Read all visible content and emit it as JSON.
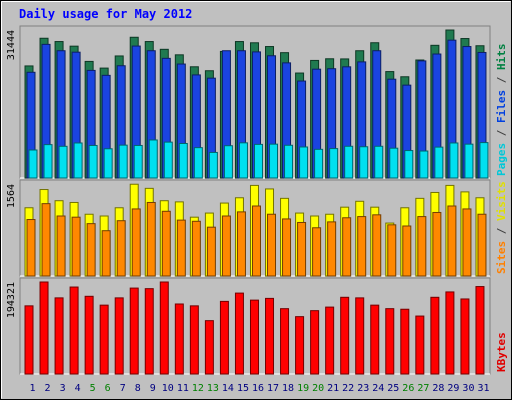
{
  "chart_data": {
    "type": "bar",
    "title": "Daily usage for May 2012",
    "categories": [
      "1",
      "2",
      "3",
      "4",
      "5",
      "6",
      "7",
      "8",
      "9",
      "10",
      "11",
      "12",
      "13",
      "14",
      "15",
      "16",
      "17",
      "18",
      "19",
      "20",
      "21",
      "22",
      "23",
      "24",
      "25",
      "26",
      "27",
      "28",
      "29",
      "30",
      "31"
    ],
    "weekend_days": [
      "5",
      "6",
      "12",
      "13",
      "19",
      "20",
      "26",
      "27"
    ],
    "panels": [
      {
        "id": "hits-files-pages",
        "max_label": "31444",
        "ymax": 31444,
        "right_labels": [
          {
            "text": "Pages",
            "color": "#00c8d8"
          },
          {
            "text": " / ",
            "color": "#404040"
          },
          {
            "text": "Files",
            "color": "#0040e0"
          },
          {
            "text": " / ",
            "color": "#404040"
          },
          {
            "text": "Hits",
            "color": "#008040"
          }
        ],
        "series": [
          {
            "name": "Hits",
            "color": "#207a50",
            "values": [
              23810,
              29690,
              28990,
              28010,
              24770,
              23350,
              25930,
              29900,
              28990,
              27340,
              26170,
              23630,
              22790,
              26890,
              28990,
              28730,
              27930,
              26630,
              22300,
              24980,
              25330,
              25300,
              27040,
              28740,
              22610,
              21510,
              25070,
              28190,
              31440,
              29630,
              28100
            ]
          },
          {
            "name": "Files",
            "color": "#1a44e0",
            "values": [
              22460,
              28390,
              27040,
              26730,
              22860,
              21810,
              23850,
              28030,
              27040,
              25420,
              24210,
              21900,
              21210,
              27040,
              27040,
              26790,
              25970,
              24460,
              20600,
              23120,
              23220,
              23620,
              24670,
              27040,
              20990,
              19730,
              24880,
              26340,
              29280,
              27930,
              26670
            ]
          },
          {
            "name": "Pages",
            "color": "#00e0f0",
            "values": [
              5950,
              7090,
              6730,
              7440,
              6910,
              6210,
              6980,
              6910,
              8080,
              7620,
              7330,
              6450,
              5430,
              6860,
              7470,
              7140,
              7190,
              6950,
              6590,
              6090,
              6250,
              6740,
              6640,
              6740,
              6330,
              5830,
              5730,
              6560,
              7440,
              7190,
              7520
            ]
          }
        ]
      },
      {
        "id": "visits-sites",
        "max_label": "1564",
        "ymax": 1564,
        "right_labels": [
          {
            "text": "Sites",
            "color": "#ff8000"
          },
          {
            "text": " / ",
            "color": "#404040"
          },
          {
            "text": "Visits",
            "color": "#e0e000"
          }
        ],
        "series": [
          {
            "name": "Visits",
            "color": "#ffff00",
            "values": [
              1160,
              1470,
              1280,
              1250,
              1050,
              1020,
              1160,
              1560,
              1490,
              1280,
              1260,
              1000,
              1070,
              1240,
              1330,
              1540,
              1480,
              1320,
              1070,
              1020,
              1050,
              1170,
              1270,
              1170,
              900,
              1160,
              1320,
              1420,
              1540,
              1430,
              1330
            ]
          },
          {
            "name": "Sites",
            "color": "#ff8800",
            "values": [
              960,
              1230,
              1020,
              1000,
              890,
              770,
              940,
              1140,
              1250,
              1100,
              950,
              930,
              830,
              1020,
              1090,
              1190,
              1050,
              970,
              910,
              820,
              920,
              990,
              1010,
              1040,
              870,
              850,
              1010,
              1080,
              1190,
              1140,
              1050
            ]
          }
        ]
      },
      {
        "id": "kbytes",
        "max_label": "194321",
        "ymax": 194321,
        "right_labels": [
          {
            "text": "KBytes",
            "color": "#e00000"
          }
        ],
        "series": [
          {
            "name": "KBytes",
            "color": "#ff0000",
            "values": [
              143960,
              194321,
              160780,
              183680,
              164100,
              145440,
              160780,
              181470,
              180250,
              194321,
              147870,
              143960,
              112680,
              153380,
              170890,
              156040,
              159710,
              138020,
              121150,
              133790,
              141310,
              162010,
              160780,
              145440,
              138020,
              136780,
              122390,
              162010,
              173340,
              158490,
              184690
            ]
          }
        ]
      }
    ],
    "colors": {
      "background": "#c0c0c0",
      "title": "#0000ff",
      "day_label": "#000080",
      "weekend_label": "#008000"
    }
  }
}
